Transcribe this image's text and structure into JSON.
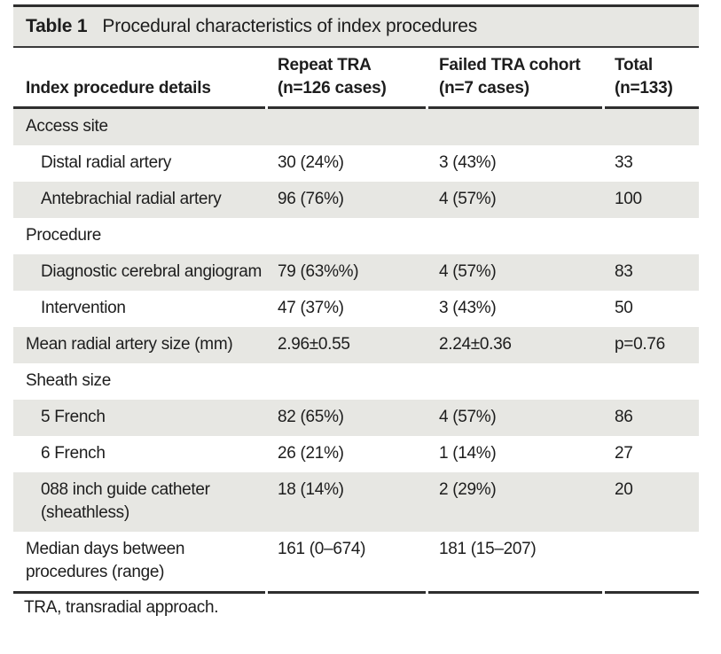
{
  "title": {
    "label": "Table 1",
    "text": "Procedural characteristics of index procedures"
  },
  "header": {
    "columns": [
      {
        "line1": "",
        "line2": "Index procedure details"
      },
      {
        "line1": "Repeat TRA",
        "line2": "(n=126 cases)"
      },
      {
        "line1": "Failed TRA cohort",
        "line2": "(n=7 cases)"
      },
      {
        "line1": "Total",
        "line2": "(n=133)"
      }
    ]
  },
  "rows": [
    {
      "label": "Access site",
      "repeat": "",
      "failed": "",
      "total": "",
      "indent": false,
      "shaded": true
    },
    {
      "label": "Distal radial artery",
      "repeat": "30 (24%)",
      "failed": "3 (43%)",
      "total": "33",
      "indent": true,
      "shaded": false
    },
    {
      "label": "Antebrachial radial artery",
      "repeat": "96 (76%)",
      "failed": "4 (57%)",
      "total": "100",
      "indent": true,
      "shaded": true
    },
    {
      "label": "Procedure",
      "repeat": "",
      "failed": "",
      "total": "",
      "indent": false,
      "shaded": false
    },
    {
      "label": "Diagnostic cerebral angiogram",
      "repeat": "79 (63%%)",
      "failed": "4 (57%)",
      "total": "83",
      "indent": true,
      "shaded": true
    },
    {
      "label": "Intervention",
      "repeat": "47 (37%)",
      "failed": "3 (43%)",
      "total": "50",
      "indent": true,
      "shaded": false
    },
    {
      "label": "Mean radial artery size (mm)",
      "repeat": "2.96±0.55",
      "failed": "2.24±0.36",
      "total": "p=0.76",
      "indent": false,
      "shaded": true
    },
    {
      "label": "Sheath size",
      "repeat": "",
      "failed": "",
      "total": "",
      "indent": false,
      "shaded": false
    },
    {
      "label": "5 French",
      "repeat": "82 (65%)",
      "failed": "4 (57%)",
      "total": "86",
      "indent": true,
      "shaded": true
    },
    {
      "label": "6 French",
      "repeat": "26 (21%)",
      "failed": "1 (14%)",
      "total": "27",
      "indent": true,
      "shaded": false
    },
    {
      "label": "088 inch guide catheter (sheathless)",
      "repeat": "18 (14%)",
      "failed": "2 (29%)",
      "total": "20",
      "indent": true,
      "shaded": true
    },
    {
      "label": "Median days between procedures (range)",
      "repeat": "161 (0–674)",
      "failed": "181 (15–207)",
      "total": "",
      "indent": false,
      "shaded": false
    }
  ],
  "footnote": "TRA, transradial approach.",
  "colors": {
    "band_gray": "#e7e7e3",
    "rule_dark": "#2e2e2e",
    "text": "#1d1d1d"
  }
}
